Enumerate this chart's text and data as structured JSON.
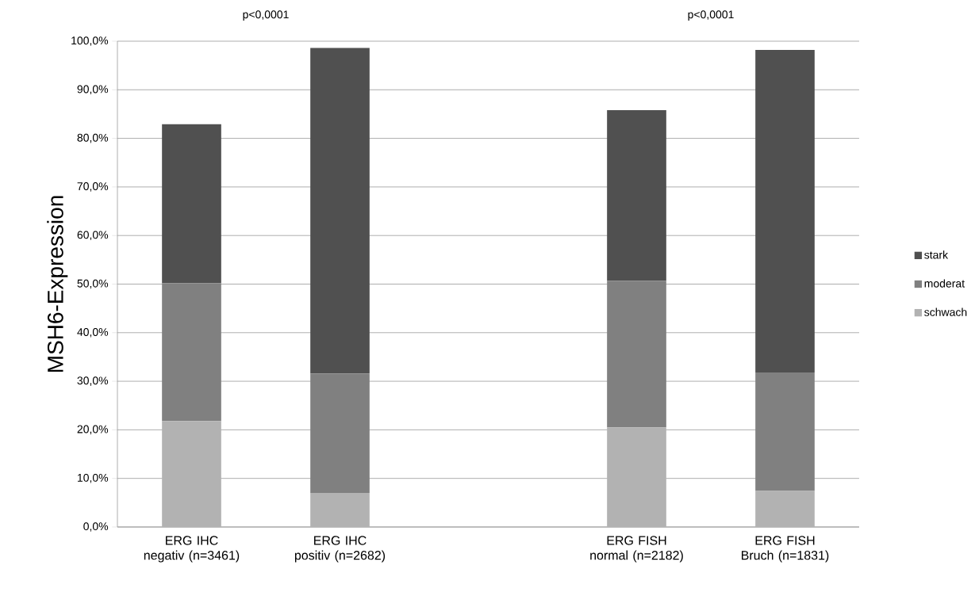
{
  "chart_data": {
    "type": "bar",
    "stacked": true,
    "ylabel": "MSH6-Expression",
    "categories": [
      "ERG IHC negativ (n=3461)",
      "ERG IHC positiv (n=2682)",
      null,
      "ERG FISH normal (n=2182)",
      "ERG FISH Bruch (n=1831)"
    ],
    "series": [
      {
        "name": "schwach",
        "color": "#b2b2b2",
        "values": [
          21.8,
          7.0,
          null,
          20.5,
          7.4
        ]
      },
      {
        "name": "moderat",
        "color": "#808080",
        "values": [
          28.4,
          24.6,
          null,
          30.2,
          24.4
        ]
      },
      {
        "name": "stark",
        "color": "#505050",
        "values": [
          32.7,
          67.0,
          null,
          35.1,
          66.4
        ]
      }
    ],
    "ylim": [
      0,
      100
    ],
    "yticks": [
      {
        "value": 0,
        "label": "0,0%"
      },
      {
        "value": 10,
        "label": "10,0%"
      },
      {
        "value": 20,
        "label": "20,0%"
      },
      {
        "value": 30,
        "label": "30,0%"
      },
      {
        "value": 40,
        "label": "40,0%"
      },
      {
        "value": 50,
        "label": "50,0%"
      },
      {
        "value": 60,
        "label": "60,0%"
      },
      {
        "value": 70,
        "label": "70,0%"
      },
      {
        "value": 80,
        "label": "80,0%"
      },
      {
        "value": 90,
        "label": "90,0%"
      },
      {
        "value": 100,
        "label": "100,0%"
      }
    ],
    "grid": "y",
    "legend": "right",
    "annotations": [
      "p<0,0001",
      "p<0,0001"
    ]
  }
}
